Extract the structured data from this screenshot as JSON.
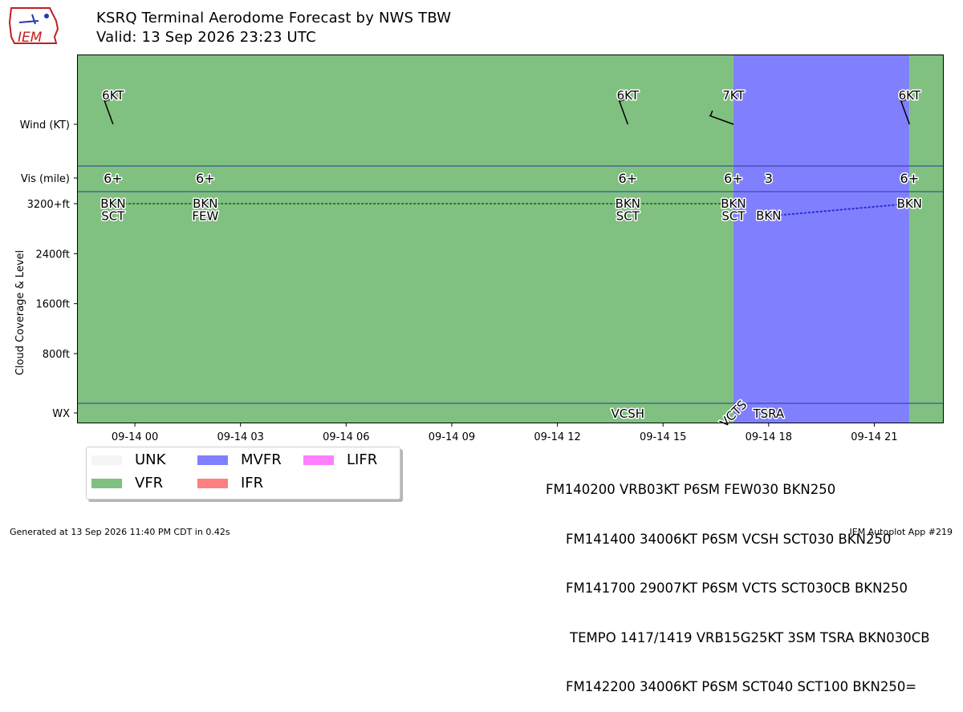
{
  "header": {
    "title_line1": "KSRQ Terminal Aerodome Forecast by NWS TBW",
    "title_line2": "Valid: 13 Sep 2026 23:23 UTC"
  },
  "logo": {
    "text": "IEM",
    "color": "#1f3ea8"
  },
  "colors": {
    "UNK": "#f5f5f5",
    "VFR": "#80c080",
    "MVFR": "#8080ff",
    "IFR": "#ff8080",
    "LIFR": "#ff80ff",
    "separator": "#2a3a9a",
    "dotted_vfr": "#2b7a2b",
    "dotted_mvfr": "#2b2bd6"
  },
  "legend": [
    {
      "label": "UNK",
      "color_key": "UNK"
    },
    {
      "label": "MVFR",
      "color_key": "MVFR"
    },
    {
      "label": "LIFR",
      "color_key": "LIFR"
    },
    {
      "label": "VFR",
      "color_key": "VFR"
    },
    {
      "label": "IFR",
      "color_key": "IFR"
    }
  ],
  "taf_lines": [
    "FM140200 VRB03KT P6SM FEW030 BKN250",
    "FM141400 34006KT P6SM VCSH SCT030 BKN250",
    "FM141700 29007KT P6SM VCTS SCT030CB BKN250",
    "TEMPO 1417/1419 VRB15G25KT 3SM TSRA BKN030CB",
    "FM142200 34006KT P6SM SCT040 SCT100 BKN250="
  ],
  "footer": {
    "left": "Generated at 13 Sep 2026 11:40 PM CDT in 0.42s",
    "right": "IEM Autoplot App #219"
  },
  "chart_data": {
    "type": "timeline",
    "x_unit": "hours after 2026-09-14 00:00 UTC",
    "xlim": [
      -1.62,
      22.95
    ],
    "x_ticks": [
      {
        "hour": 0,
        "label": "09-14 00"
      },
      {
        "hour": 3,
        "label": "09-14 03"
      },
      {
        "hour": 6,
        "label": "09-14 06"
      },
      {
        "hour": 9,
        "label": "09-14 09"
      },
      {
        "hour": 12,
        "label": "09-14 12"
      },
      {
        "hour": 15,
        "label": "09-14 15"
      },
      {
        "hour": 18,
        "label": "09-14 18"
      },
      {
        "hour": 21,
        "label": "09-14 21"
      }
    ],
    "y_labels": {
      "wind": "Wind (KT)",
      "vis": "Vis (mile)",
      "cloud_axis": "Cloud Coverage & Level",
      "wx": "WX"
    },
    "cloud_ticks": [
      {
        "value": 3200,
        "label": "3200+ft"
      },
      {
        "value": 2400,
        "label": "2400ft"
      },
      {
        "value": 1600,
        "label": "1600ft"
      },
      {
        "value": 800,
        "label": "800ft"
      }
    ],
    "flight_category_bands": [
      {
        "start": -1.62,
        "end": 17.0,
        "category": "VFR"
      },
      {
        "start": 17.0,
        "end": 22.0,
        "category": "MVFR"
      },
      {
        "start": 22.0,
        "end": 22.95,
        "category": "VFR"
      }
    ],
    "wind": [
      {
        "hour": -0.62,
        "label": "6KT",
        "direction": 340
      },
      {
        "hour": 14.0,
        "label": "6KT",
        "direction": 340
      },
      {
        "hour": 17.0,
        "label": "7KT",
        "direction": 290
      },
      {
        "hour": 22.0,
        "label": "6KT",
        "direction": 340
      }
    ],
    "visibility": [
      {
        "hour": -0.62,
        "label": "6+"
      },
      {
        "hour": 2.0,
        "label": "6+"
      },
      {
        "hour": 14.0,
        "label": "6+"
      },
      {
        "hour": 17.0,
        "label": "6+"
      },
      {
        "hour": 18.0,
        "label": "3"
      },
      {
        "hour": 22.0,
        "label": "6+"
      }
    ],
    "clouds": [
      {
        "hour": -0.62,
        "layers": [
          "BKN",
          "SCT"
        ]
      },
      {
        "hour": 2.0,
        "layers": [
          "BKN",
          "FEW"
        ]
      },
      {
        "hour": 14.0,
        "layers": [
          "BKN",
          "SCT"
        ]
      },
      {
        "hour": 17.0,
        "layers": [
          "BKN",
          "SCT"
        ]
      },
      {
        "hour": 22.0,
        "layers": [
          "BKN"
        ]
      }
    ],
    "tempo_cloud": {
      "hour": 18.0,
      "label": "BKN",
      "level_ft": 3000
    },
    "ceiling_lines": [
      {
        "points": [
          [
            -0.62,
            3200
          ],
          [
            17.0,
            3200
          ]
        ],
        "category": "VFR"
      },
      {
        "points": [
          [
            18.0,
            3000
          ],
          [
            22.0,
            3200
          ]
        ],
        "category": "MVFR"
      }
    ],
    "weather": [
      {
        "hour": 14.0,
        "label": "VCSH",
        "rotation": 0
      },
      {
        "hour": 17.0,
        "label": "VCTS",
        "rotation": -45
      },
      {
        "hour": 18.0,
        "label": "TSRA",
        "rotation": 0
      }
    ]
  }
}
